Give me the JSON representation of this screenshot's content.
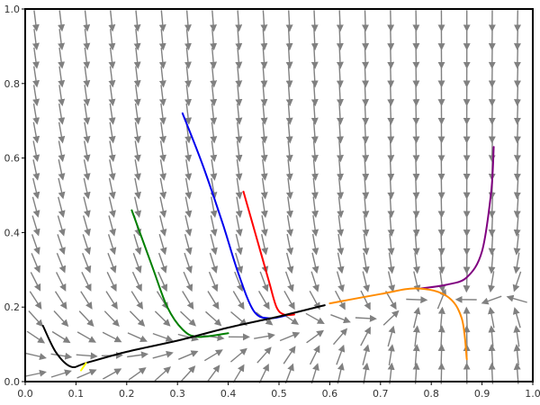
{
  "chart_data": {
    "type": "line",
    "title": "",
    "xlabel": "",
    "ylabel": "",
    "xlim": [
      0,
      1
    ],
    "ylim": [
      0,
      1
    ],
    "grid": false,
    "legend": "none",
    "x_ticks": [
      "0.0",
      "0.1",
      "0.2",
      "0.3",
      "0.4",
      "0.5",
      "0.6",
      "0.7",
      "0.8",
      "0.9",
      "1.0"
    ],
    "y_ticks": [
      "0.0",
      "0.2",
      "0.4",
      "0.6",
      "0.8",
      "1.0"
    ],
    "colors": {
      "arrows": "#808080",
      "axes": "#000000"
    },
    "series": [
      {
        "color": "#0000ee",
        "x": [
          0.31,
          0.35,
          0.39,
          0.42,
          0.45,
          0.48,
          0.52
        ],
        "y": [
          0.72,
          0.58,
          0.42,
          0.29,
          0.19,
          0.17,
          0.18
        ]
      },
      {
        "color": "#ff0000",
        "x": [
          0.43,
          0.455,
          0.48,
          0.495,
          0.51,
          0.53
        ],
        "y": [
          0.51,
          0.39,
          0.27,
          0.2,
          0.18,
          0.18
        ]
      },
      {
        "color": "#007f00",
        "x": [
          0.21,
          0.25,
          0.28,
          0.31,
          0.34,
          0.4
        ],
        "y": [
          0.46,
          0.31,
          0.2,
          0.14,
          0.12,
          0.13
        ]
      },
      {
        "color": "#800080",
        "x": [
          0.923,
          0.918,
          0.9,
          0.87,
          0.83,
          0.78
        ],
        "y": [
          0.63,
          0.51,
          0.35,
          0.28,
          0.26,
          0.25
        ]
      },
      {
        "color": "#ff8c00",
        "x": [
          0.87,
          0.86,
          0.83,
          0.77,
          0.7,
          0.6
        ],
        "y": [
          0.06,
          0.17,
          0.23,
          0.25,
          0.235,
          0.21
        ]
      },
      {
        "color": "#000000",
        "x": [
          0.035,
          0.06,
          0.09,
          0.12,
          0.2,
          0.3,
          0.4,
          0.5,
          0.59
        ],
        "y": [
          0.15,
          0.08,
          0.04,
          0.05,
          0.08,
          0.11,
          0.145,
          0.175,
          0.205
        ]
      },
      {
        "color": "#ffff00",
        "x": [
          0.11,
          0.12
        ],
        "y": [
          0.03,
          0.05
        ]
      }
    ]
  }
}
